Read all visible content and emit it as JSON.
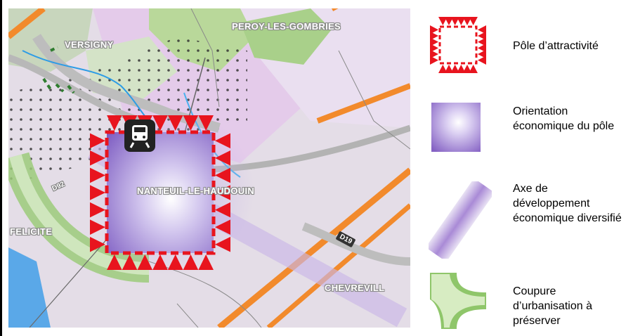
{
  "map": {
    "places": {
      "versigny": "VERSIGNY",
      "peroy": "PEROY-LES-GOMBRIES",
      "nanteuil": "NANTEUIL-LE-HAUDOUIN",
      "felicite": "FELICITE",
      "chevreville": "CHEVREVILL"
    },
    "roads": {
      "d922": "D92",
      "d19": "D19"
    },
    "icon": "train-station-icon"
  },
  "legend": [
    {
      "id": "pole",
      "label": "Pôle d’attractivité"
    },
    {
      "id": "orientation",
      "label": "Orientation économique du pôle"
    },
    {
      "id": "axe",
      "label": "Axe de développement économique diversifié"
    },
    {
      "id": "coupure",
      "label": "Coupure d’urbanisation à préserver"
    }
  ],
  "colors": {
    "pole_red": "#e8141e",
    "purple": "#8f6fc6",
    "orange_road": "#f28a2c",
    "green": "#8fc66a"
  }
}
